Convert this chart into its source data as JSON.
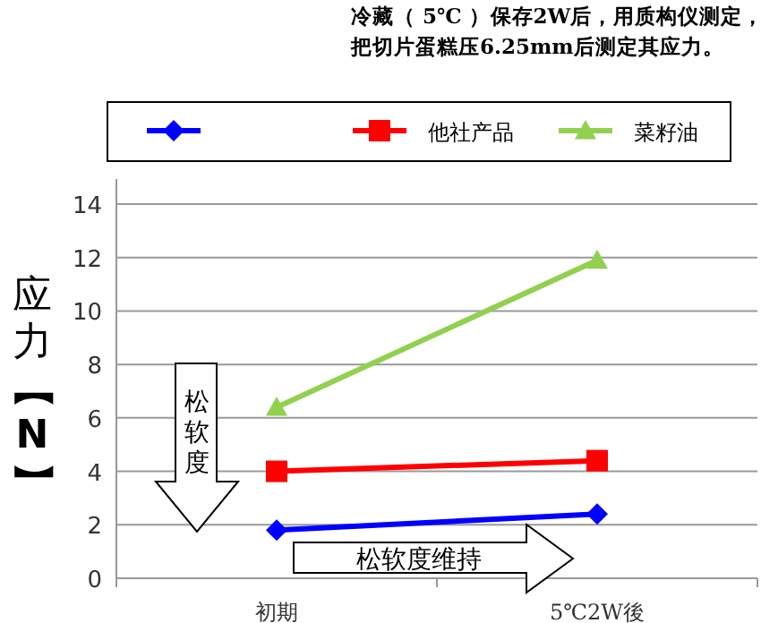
{
  "chart_data": {
    "type": "line",
    "title": "冷藏（ 5℃ ）保存2W后，用质构仪测定，",
    "subtitle": "把切片蛋糕压6.25mm后测定其应力。",
    "ylabel": "应力【N】",
    "categories": [
      "初期",
      "5℃2W後"
    ],
    "series": [
      {
        "color": "#0000ff",
        "marker": "diamond",
        "values": [
          1.8,
          2.4
        ]
      },
      {
        "name": "他社产品",
        "color": "#ff0000",
        "marker": "square",
        "values": [
          4.0,
          4.4
        ]
      },
      {
        "name": "菜籽油",
        "color": "#92d050",
        "marker": "triangle",
        "values": [
          6.4,
          11.9
        ]
      }
    ],
    "ylim": [
      0,
      14
    ],
    "yticks": [
      0,
      2,
      4,
      6,
      8,
      10,
      12,
      14
    ],
    "grid": "y",
    "legend": "top",
    "annotations": [
      "松软度",
      "松软度维持"
    ]
  }
}
